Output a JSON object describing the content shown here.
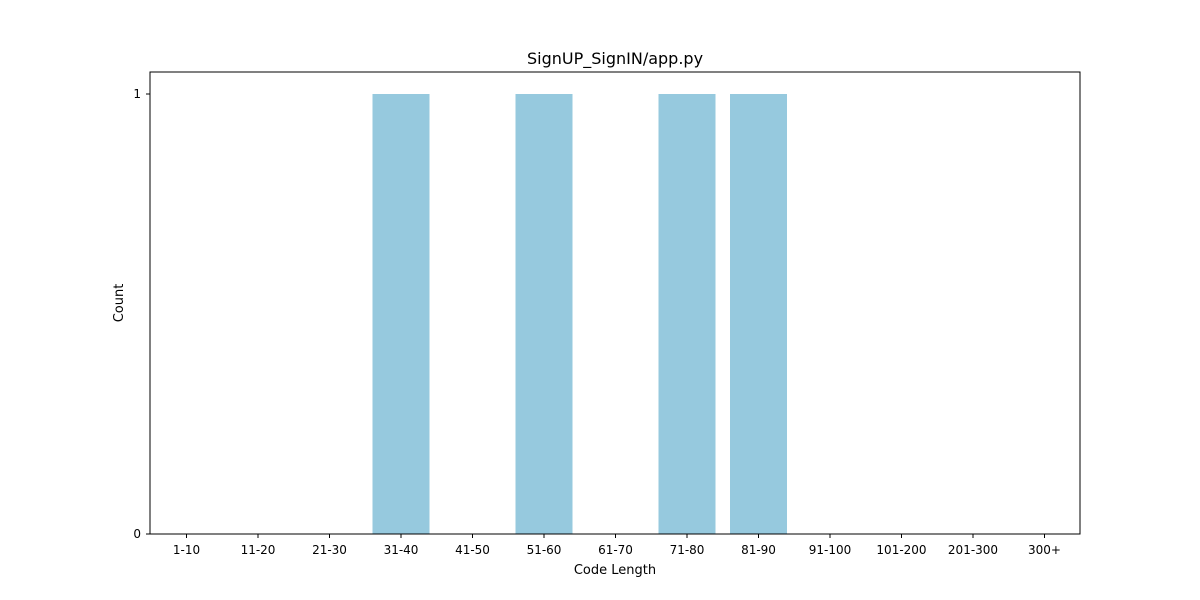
{
  "chart_data": {
    "type": "bar",
    "title": "SignUP_SignIN/app.py",
    "xlabel": "Code Length",
    "ylabel": "Count",
    "categories": [
      "1-10",
      "11-20",
      "21-30",
      "31-40",
      "41-50",
      "51-60",
      "61-70",
      "71-80",
      "81-90",
      "91-100",
      "101-200",
      "201-300",
      "300+"
    ],
    "values": [
      0,
      0,
      0,
      1,
      0,
      1,
      0,
      1,
      1,
      0,
      0,
      0,
      0
    ],
    "ylim": [
      0,
      1.05
    ],
    "yticks": [
      0,
      1
    ],
    "grid": false,
    "bar_color": "#96c9de"
  }
}
